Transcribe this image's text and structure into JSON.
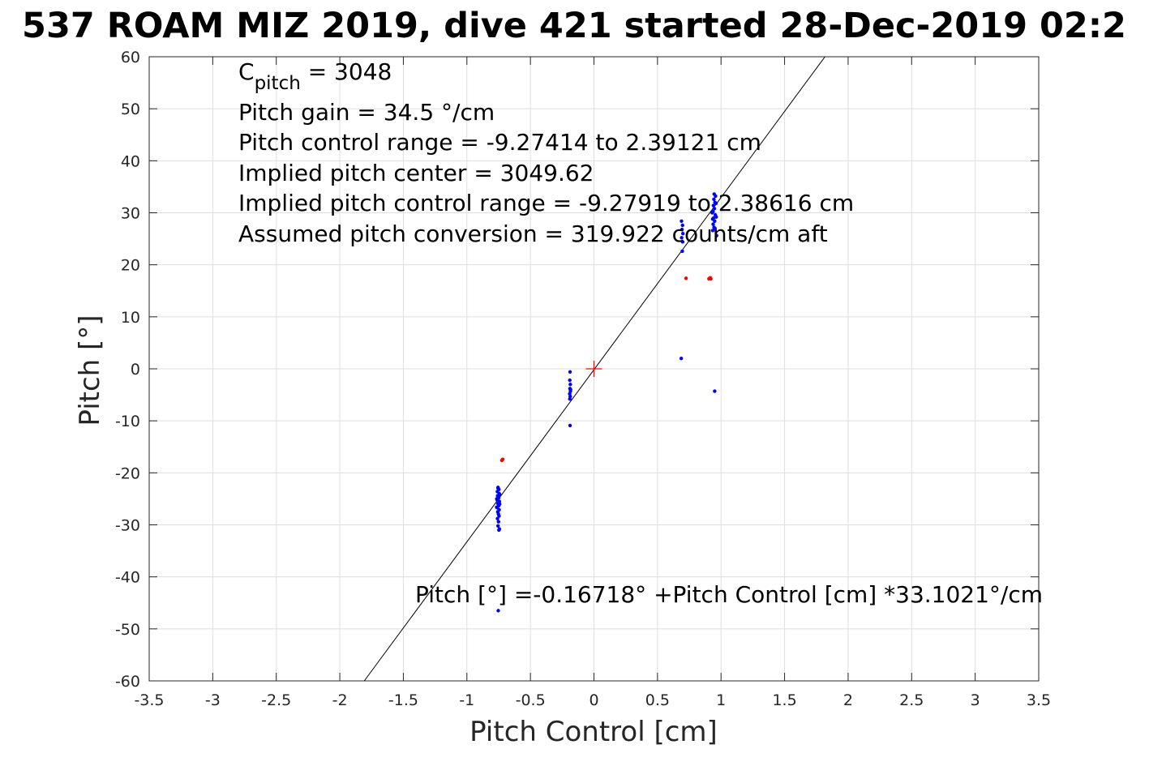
{
  "chart_data": {
    "type": "scatter",
    "title": "537 ROAM MIZ 2019, dive 421 started 28-Dec-2019 02:2",
    "xlabel": "Pitch Control [cm]",
    "ylabel": "Pitch [°]",
    "xlim": [
      -3.5,
      3.5
    ],
    "ylim": [
      -60,
      60
    ],
    "grid": true,
    "x_ticks": [
      -3.5,
      -3,
      -2.5,
      -2,
      -1.5,
      -1,
      -0.5,
      0,
      0.5,
      1,
      1.5,
      2,
      2.5,
      3,
      3.5
    ],
    "x_tick_labels": [
      "-3.5",
      "-3",
      "-2.5",
      "-2",
      "-1.5",
      "-1",
      "-0.5",
      "0",
      "0.5",
      "1",
      "1.5",
      "2",
      "2.5",
      "3",
      "3.5"
    ],
    "y_ticks": [
      60,
      50,
      40,
      30,
      20,
      10,
      0,
      -10,
      -20,
      -30,
      -40,
      -50,
      -60
    ],
    "y_tick_labels": [
      "60",
      "50",
      "40",
      "30",
      "20",
      "10",
      "0",
      "-10",
      "-20",
      "-30",
      "-40",
      "-50",
      "-60"
    ],
    "annotations": {
      "c_pitch_prefix": "C",
      "c_pitch_sub": "pitch",
      "c_pitch_value": " = 3048",
      "lines": [
        "Pitch gain = 34.5 °/cm",
        "Pitch control range = -9.27414 to 2.39121 cm",
        "Implied pitch center = 3049.62",
        "Implied pitch control range = -9.27919 to 2.38616 cm",
        "Assumed pitch conversion = 319.922 counts/cm aft"
      ],
      "fit_equation": "Pitch [°] =-0.16718° +Pitch Control [cm] *33.1021°/cm"
    },
    "fit_line": {
      "intercept": -0.16718,
      "slope": 33.1021
    },
    "center_marker": {
      "x": 0,
      "y": 0,
      "color": "#ff0000"
    },
    "series": [
      {
        "color": "#0000ff",
        "points": [
          [
            -0.755,
            -22.8
          ],
          [
            -0.748,
            -23.2
          ],
          [
            -0.76,
            -23.6
          ],
          [
            -0.745,
            -24.0
          ],
          [
            -0.758,
            -24.4
          ],
          [
            -0.75,
            -24.8
          ],
          [
            -0.762,
            -25.2
          ],
          [
            -0.744,
            -25.5
          ],
          [
            -0.756,
            -25.9
          ],
          [
            -0.749,
            -26.3
          ],
          [
            -0.761,
            -26.7
          ],
          [
            -0.746,
            -27.1
          ],
          [
            -0.757,
            -27.5
          ],
          [
            -0.752,
            -27.9
          ],
          [
            -0.747,
            -28.3
          ],
          [
            -0.759,
            -28.8
          ],
          [
            -0.751,
            -29.4
          ],
          [
            -0.755,
            -30.2
          ],
          [
            -0.744,
            -30.8
          ],
          [
            -0.741,
            -24.2
          ],
          [
            -0.765,
            -25.0
          ],
          [
            -0.742,
            -26.0
          ],
          [
            -0.766,
            -26.6
          ],
          [
            -0.754,
            -23.0
          ],
          [
            -0.748,
            -31.0
          ],
          [
            -0.753,
            -46.5
          ],
          [
            -0.188,
            -0.6
          ],
          [
            -0.19,
            -2.2
          ],
          [
            -0.186,
            -3.0
          ],
          [
            -0.189,
            -3.8
          ],
          [
            -0.185,
            -4.3
          ],
          [
            -0.191,
            -4.8
          ],
          [
            -0.187,
            -5.3
          ],
          [
            -0.19,
            -5.8
          ],
          [
            -0.184,
            -4.0
          ],
          [
            -0.188,
            -10.9
          ],
          [
            0.695,
            22.6
          ],
          [
            0.698,
            24.4
          ],
          [
            0.69,
            25.2
          ],
          [
            0.7,
            26.0
          ],
          [
            0.693,
            26.8
          ],
          [
            0.697,
            27.6
          ],
          [
            0.689,
            28.4
          ],
          [
            0.687,
            2.0
          ],
          [
            0.935,
            26.6
          ],
          [
            0.945,
            27.2
          ],
          [
            0.938,
            27.8
          ],
          [
            0.95,
            28.4
          ],
          [
            0.942,
            29.0
          ],
          [
            0.955,
            29.6
          ],
          [
            0.937,
            30.2
          ],
          [
            0.948,
            30.8
          ],
          [
            0.94,
            31.4
          ],
          [
            0.952,
            32.0
          ],
          [
            0.944,
            32.6
          ],
          [
            0.957,
            33.2
          ],
          [
            0.96,
            31.8
          ],
          [
            0.93,
            30.0
          ],
          [
            0.962,
            29.2
          ],
          [
            0.946,
            33.6
          ],
          [
            0.934,
            28.8
          ],
          [
            0.953,
            27.0
          ],
          [
            0.965,
            25.6
          ],
          [
            0.95,
            -4.3
          ]
        ]
      },
      {
        "color": "#ff0000",
        "points": [
          [
            -0.718,
            -17.4
          ],
          [
            -0.725,
            -17.6
          ],
          [
            0.725,
            17.4
          ],
          [
            0.905,
            17.3
          ],
          [
            0.915,
            17.5
          ],
          [
            0.92,
            17.3
          ]
        ]
      }
    ]
  }
}
